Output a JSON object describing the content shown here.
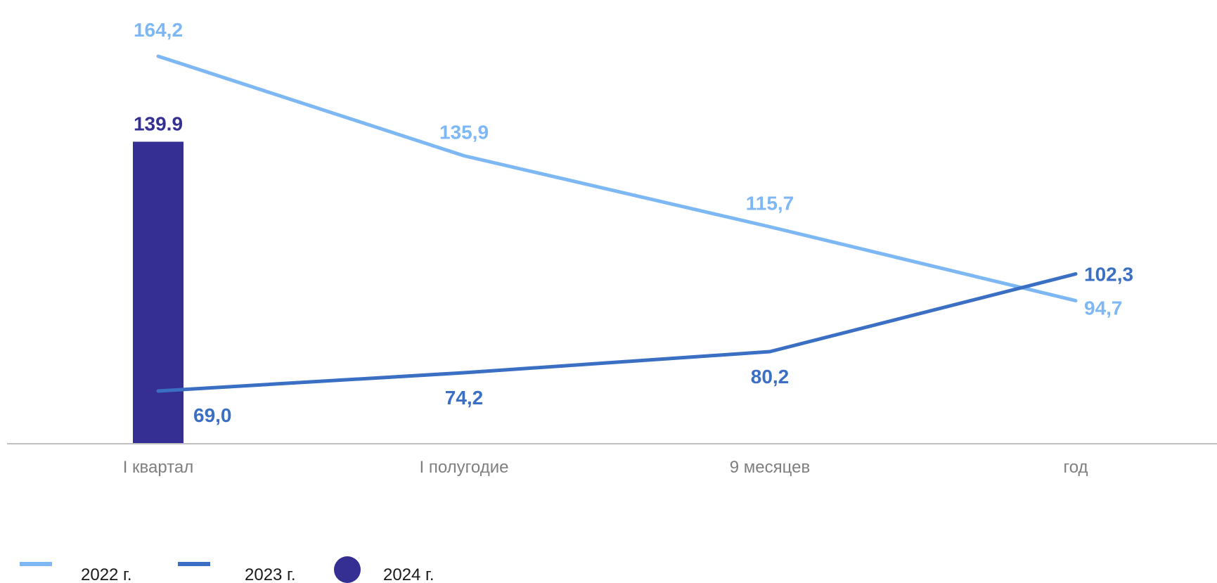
{
  "chart_data": {
    "type": "bar",
    "categories": [
      "I квартал",
      "I полугодие",
      "9 месяцев",
      "год"
    ],
    "series": [
      {
        "name": "2022 г.",
        "kind": "line",
        "color": "#7db8f5",
        "values": [
          164.2,
          135.9,
          115.7,
          94.7
        ],
        "labels": [
          "164,2",
          "135,9",
          "115,7",
          "94,7"
        ]
      },
      {
        "name": "2023 г.",
        "kind": "line",
        "color": "#3a6fc4",
        "values": [
          69.0,
          74.2,
          80.2,
          102.3
        ],
        "labels": [
          "69,0",
          "74,2",
          "80,2",
          "102,3"
        ]
      },
      {
        "name": "2024 г.",
        "kind": "bar",
        "color": "#352f93",
        "values": [
          139.9,
          null,
          null,
          null
        ],
        "labels": [
          "139.9",
          "",
          "",
          ""
        ]
      }
    ],
    "legend_position": "bottom-left",
    "ylim": [
      54,
      172
    ],
    "grid": false,
    "axis_color": "#c0c0c0",
    "title": "",
    "xlabel": "",
    "ylabel": ""
  }
}
